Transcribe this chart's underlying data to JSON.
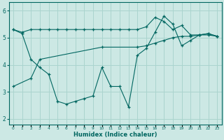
{
  "xlabel": "Humidex (Indice chaleur)",
  "background_color": "#cce8e4",
  "grid_color": "#aad4ce",
  "line_color": "#006660",
  "xlim": [
    -0.5,
    23.5
  ],
  "ylim": [
    1.8,
    6.3
  ],
  "yticks": [
    2,
    3,
    4,
    5,
    6
  ],
  "xticks": [
    0,
    1,
    2,
    3,
    4,
    5,
    6,
    7,
    8,
    9,
    10,
    11,
    12,
    13,
    14,
    15,
    16,
    17,
    18,
    19,
    20,
    21,
    22,
    23
  ],
  "series1_x": [
    0,
    1,
    2,
    3,
    4,
    5,
    6,
    7,
    8,
    9,
    10,
    11,
    12,
    13,
    14,
    15,
    16,
    17,
    18,
    19,
    20,
    21,
    22,
    23
  ],
  "series1_y": [
    5.3,
    5.2,
    5.3,
    5.3,
    5.3,
    5.3,
    5.3,
    5.3,
    5.3,
    5.3,
    5.3,
    5.3,
    5.3,
    5.3,
    5.3,
    5.4,
    5.75,
    5.6,
    5.3,
    5.45,
    5.1,
    5.1,
    5.15,
    5.05
  ],
  "series2_x": [
    0,
    1,
    2,
    3,
    4,
    5,
    6,
    7,
    8,
    9,
    10,
    11,
    12,
    13,
    14,
    15,
    16,
    17,
    18,
    19,
    20,
    21,
    22,
    23
  ],
  "series2_y": [
    5.3,
    5.15,
    4.2,
    3.9,
    3.65,
    2.65,
    2.55,
    2.65,
    2.75,
    2.85,
    3.9,
    3.2,
    3.2,
    2.45,
    4.35,
    4.6,
    5.2,
    5.8,
    5.5,
    4.7,
    4.9,
    5.1,
    5.15,
    5.05
  ],
  "series3_x": [
    0,
    2,
    3,
    10,
    14,
    15,
    16,
    17,
    18,
    19,
    20,
    21,
    22,
    23
  ],
  "series3_y": [
    3.2,
    3.5,
    4.2,
    4.65,
    4.65,
    4.7,
    4.8,
    4.9,
    5.0,
    5.05,
    5.05,
    5.1,
    5.1,
    5.05
  ]
}
